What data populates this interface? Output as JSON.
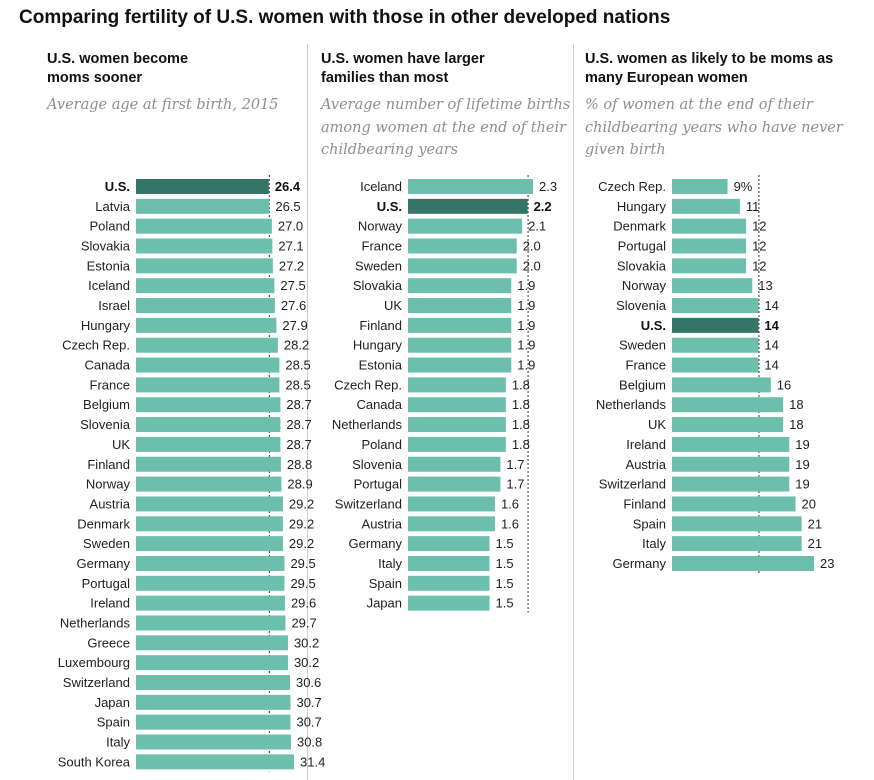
{
  "title": "Comparing fertility of U.S. women with those in other developed nations",
  "colors": {
    "bar": "#6dbfad",
    "highlight": "#357565",
    "reference_line": "#333333"
  },
  "chart_data": [
    {
      "type": "bar",
      "orientation": "horizontal",
      "title": "U.S. women become moms sooner",
      "subtitle": "Average age at first birth, 2015",
      "categories": [
        "U.S.",
        "Latvia",
        "Poland",
        "Slovakia",
        "Estonia",
        "Iceland",
        "Israel",
        "Hungary",
        "Czech Rep.",
        "Canada",
        "France",
        "Belgium",
        "Slovenia",
        "UK",
        "Finland",
        "Norway",
        "Austria",
        "Denmark",
        "Sweden",
        "Germany",
        "Portugal",
        "Ireland",
        "Netherlands",
        "Greece",
        "Luxembourg",
        "Switzerland",
        "Japan",
        "Spain",
        "Italy",
        "South Korea"
      ],
      "values": [
        26.4,
        26.5,
        27.0,
        27.1,
        27.2,
        27.5,
        27.6,
        27.9,
        28.2,
        28.5,
        28.5,
        28.7,
        28.7,
        28.7,
        28.8,
        28.9,
        29.2,
        29.2,
        29.2,
        29.5,
        29.5,
        29.6,
        29.7,
        30.2,
        30.2,
        30.6,
        30.7,
        30.7,
        30.8,
        31.4
      ],
      "labels": [
        "26.4",
        "26.5",
        "27.0",
        "27.1",
        "27.2",
        "27.5",
        "27.6",
        "27.9",
        "28.2",
        "28.5",
        "28.5",
        "28.7",
        "28.7",
        "28.7",
        "28.8",
        "28.9",
        "29.2",
        "29.2",
        "29.2",
        "29.5",
        "29.5",
        "29.6",
        "29.7",
        "30.2",
        "30.2",
        "30.6",
        "30.7",
        "30.7",
        "30.8",
        "31.4"
      ],
      "highlight": "U.S.",
      "reference_value": 26.4,
      "xlim": [
        0,
        31.4
      ]
    },
    {
      "type": "bar",
      "orientation": "horizontal",
      "title": "U.S. women have larger families than most",
      "subtitle": "Average number of lifetime births among women at the end of their childbearing years",
      "categories": [
        "Iceland",
        "U.S.",
        "Norway",
        "France",
        "Sweden",
        "Slovakia",
        "UK",
        "Finland",
        "Hungary",
        "Estonia",
        "Czech Rep.",
        "Canada",
        "Netherlands",
        "Poland",
        "Slovenia",
        "Portugal",
        "Switzerland",
        "Austria",
        "Germany",
        "Italy",
        "Spain",
        "Japan"
      ],
      "values": [
        2.3,
        2.2,
        2.1,
        2.0,
        2.0,
        1.9,
        1.9,
        1.9,
        1.9,
        1.9,
        1.8,
        1.8,
        1.8,
        1.8,
        1.7,
        1.7,
        1.6,
        1.6,
        1.5,
        1.5,
        1.5,
        1.5
      ],
      "labels": [
        "2.3",
        "2.2",
        "2.1",
        "2.0",
        "2.0",
        "1.9",
        "1.9",
        "1.9",
        "1.9",
        "1.9",
        "1.8",
        "1.8",
        "1.8",
        "1.8",
        "1.7",
        "1.7",
        "1.6",
        "1.6",
        "1.5",
        "1.5",
        "1.5",
        "1.5"
      ],
      "highlight": "U.S.",
      "reference_value": 2.2,
      "xlim": [
        0,
        2.3
      ]
    },
    {
      "type": "bar",
      "orientation": "horizontal",
      "title": "U.S. women as likely to be moms as many European women",
      "subtitle": "% of women at the end of their childbearing years who have never given birth",
      "categories": [
        "Czech Rep.",
        "Hungary",
        "Denmark",
        "Portugal",
        "Slovakia",
        "Norway",
        "Slovenia",
        "U.S.",
        "Sweden",
        "France",
        "Belgium",
        "Netherlands",
        "UK",
        "Ireland",
        "Austria",
        "Switzerland",
        "Finland",
        "Spain",
        "Italy",
        "Germany"
      ],
      "values": [
        9,
        11,
        12,
        12,
        12,
        13,
        14,
        14,
        14,
        14,
        16,
        18,
        18,
        19,
        19,
        19,
        20,
        21,
        21,
        23
      ],
      "labels": [
        "9%",
        "11",
        "12",
        "12",
        "12",
        "13",
        "14",
        "14",
        "14",
        "14",
        "16",
        "18",
        "18",
        "19",
        "19",
        "19",
        "20",
        "21",
        "21",
        "23"
      ],
      "highlight": "U.S.",
      "reference_value": 14,
      "xlim": [
        0,
        23
      ]
    }
  ]
}
